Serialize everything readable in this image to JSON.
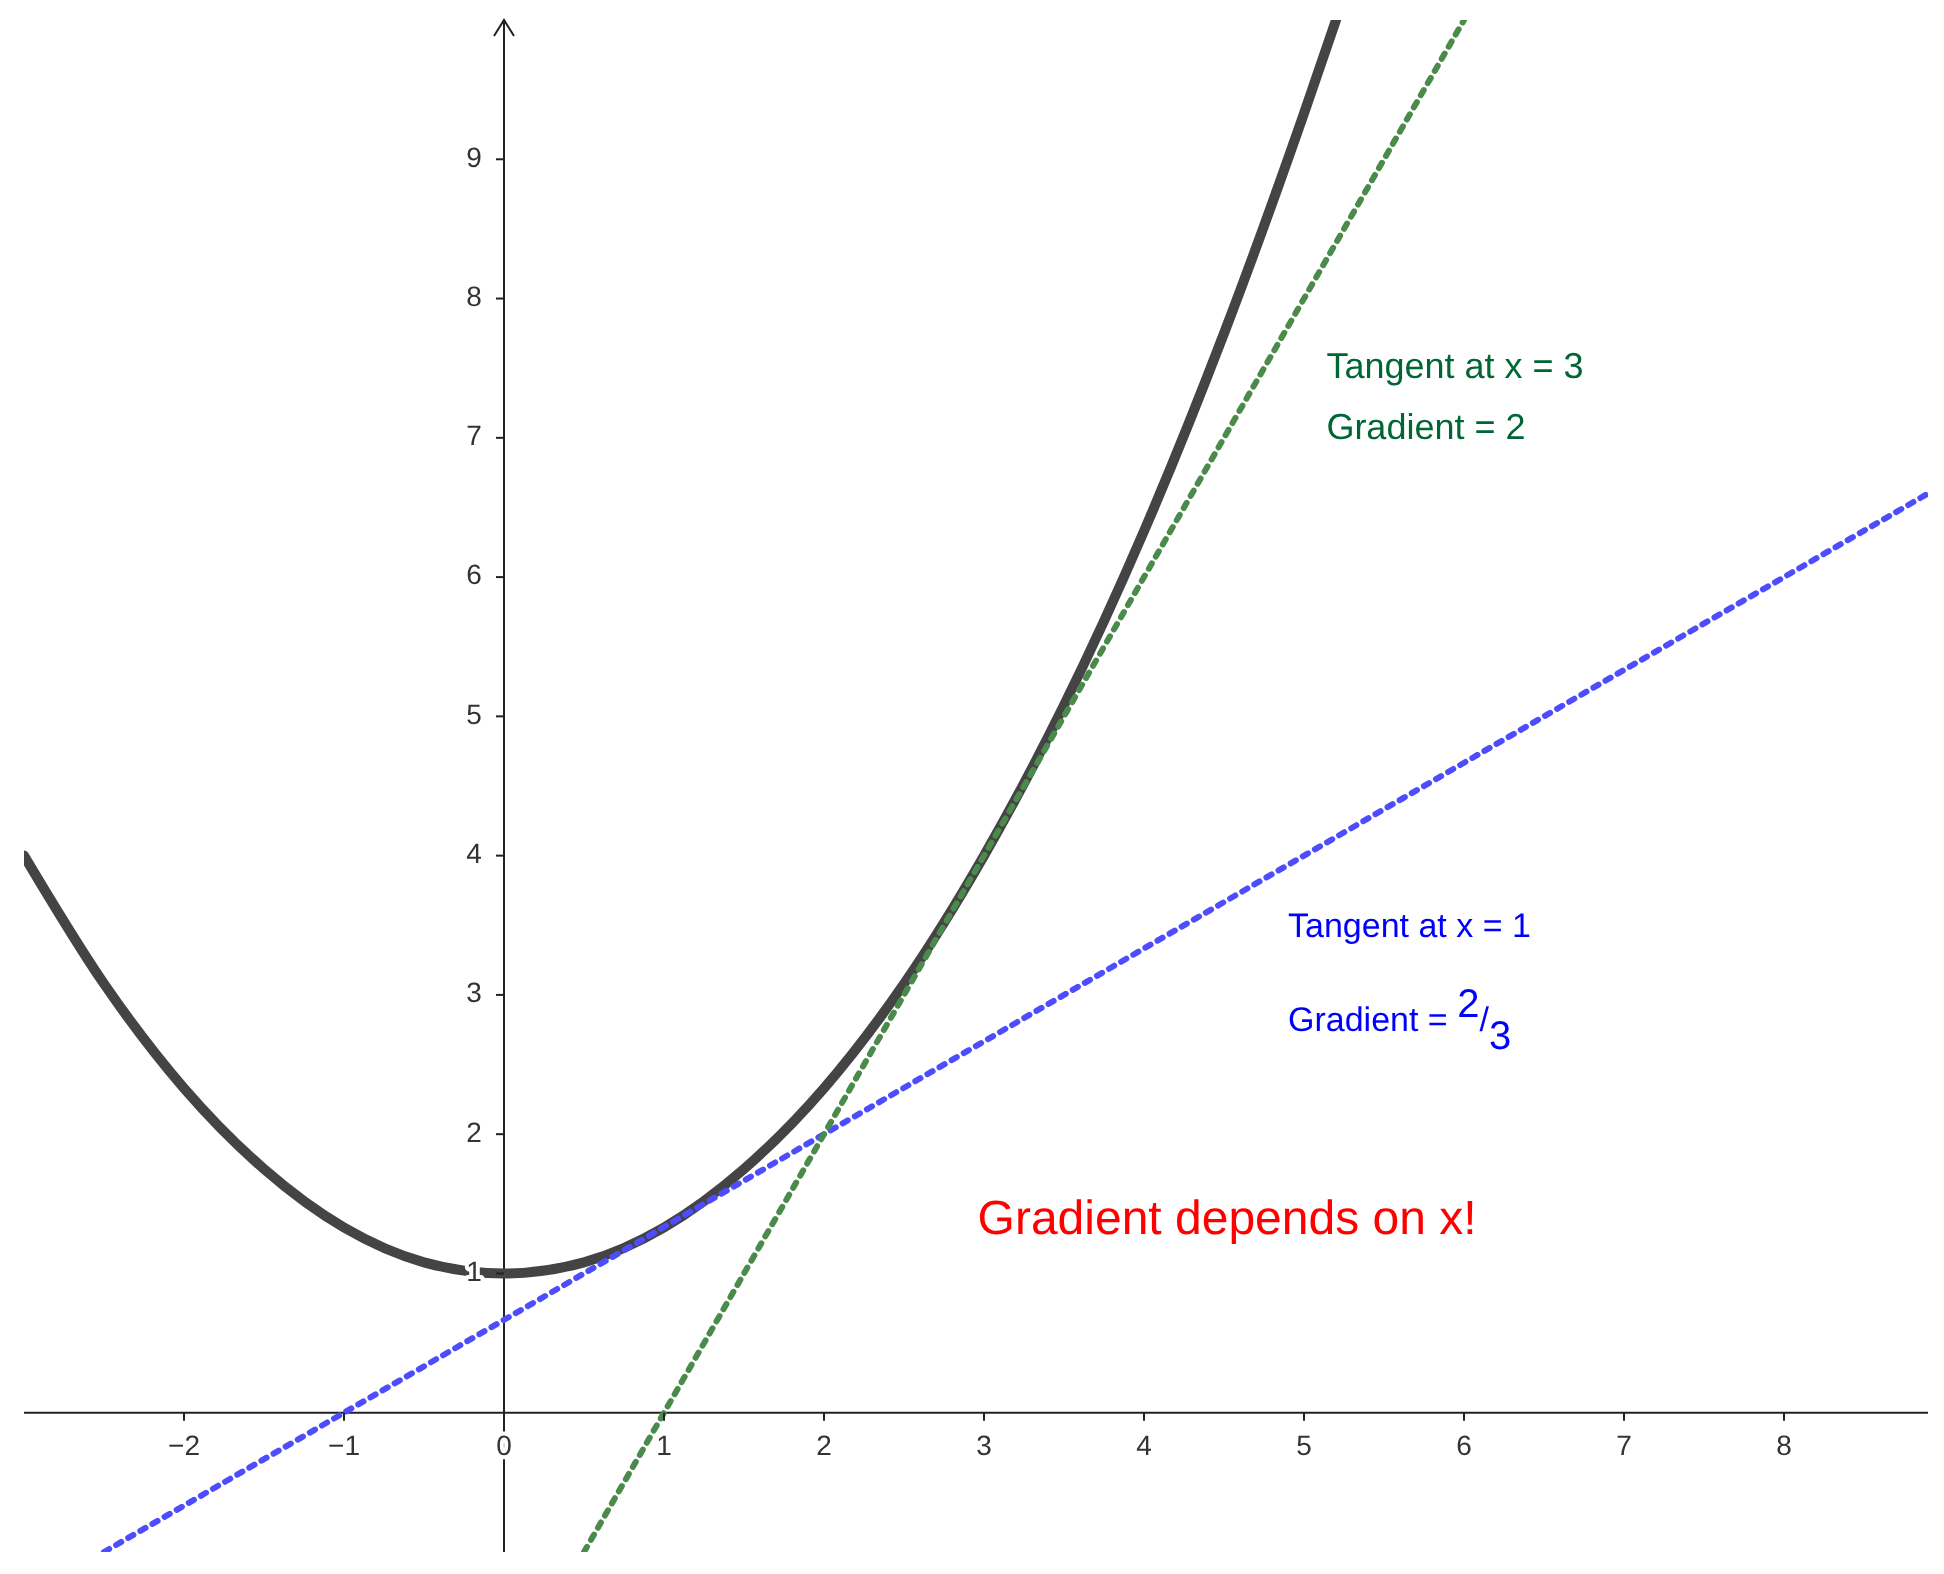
{
  "chart_data": {
    "type": "line",
    "xlim": [
      -3,
      8.9
    ],
    "ylim": [
      -1,
      10
    ],
    "xticks": [
      -2,
      -1,
      0,
      1,
      2,
      3,
      4,
      5,
      6,
      7,
      8
    ],
    "yticks": [
      1,
      2,
      3,
      4,
      5,
      6,
      7,
      8,
      9
    ],
    "series": [
      {
        "color": "#444444",
        "line_style": "solid",
        "x": [
          -3,
          -2.5,
          -2,
          -1.5,
          -1,
          -0.5,
          0,
          0.5,
          1,
          1.5,
          2,
          2.5,
          3,
          3.5,
          4,
          4.5,
          5,
          5.2
        ],
        "values": [
          4,
          3.08,
          2.33,
          1.75,
          1.33,
          1.08,
          1,
          1.08,
          1.33,
          1.75,
          2.33,
          3.08,
          4,
          5.08,
          6.33,
          7.75,
          9.33,
          10
        ]
      },
      {
        "color": "#4d4dff",
        "line_style": "dotted",
        "x": [
          -2.5,
          8.9
        ],
        "values": [
          -1,
          6.6
        ]
      },
      {
        "color": "#4a8a4a",
        "line_style": "dotted",
        "x": [
          0.5,
          6
        ],
        "values": [
          -1,
          10
        ]
      }
    ],
    "annotations": [
      "Tangent at x = 3",
      "Gradient = 2",
      "Tangent at x = 1",
      "Gradient = $^{2}$/$_{3}$",
      "Gradient depends on x!"
    ]
  }
}
